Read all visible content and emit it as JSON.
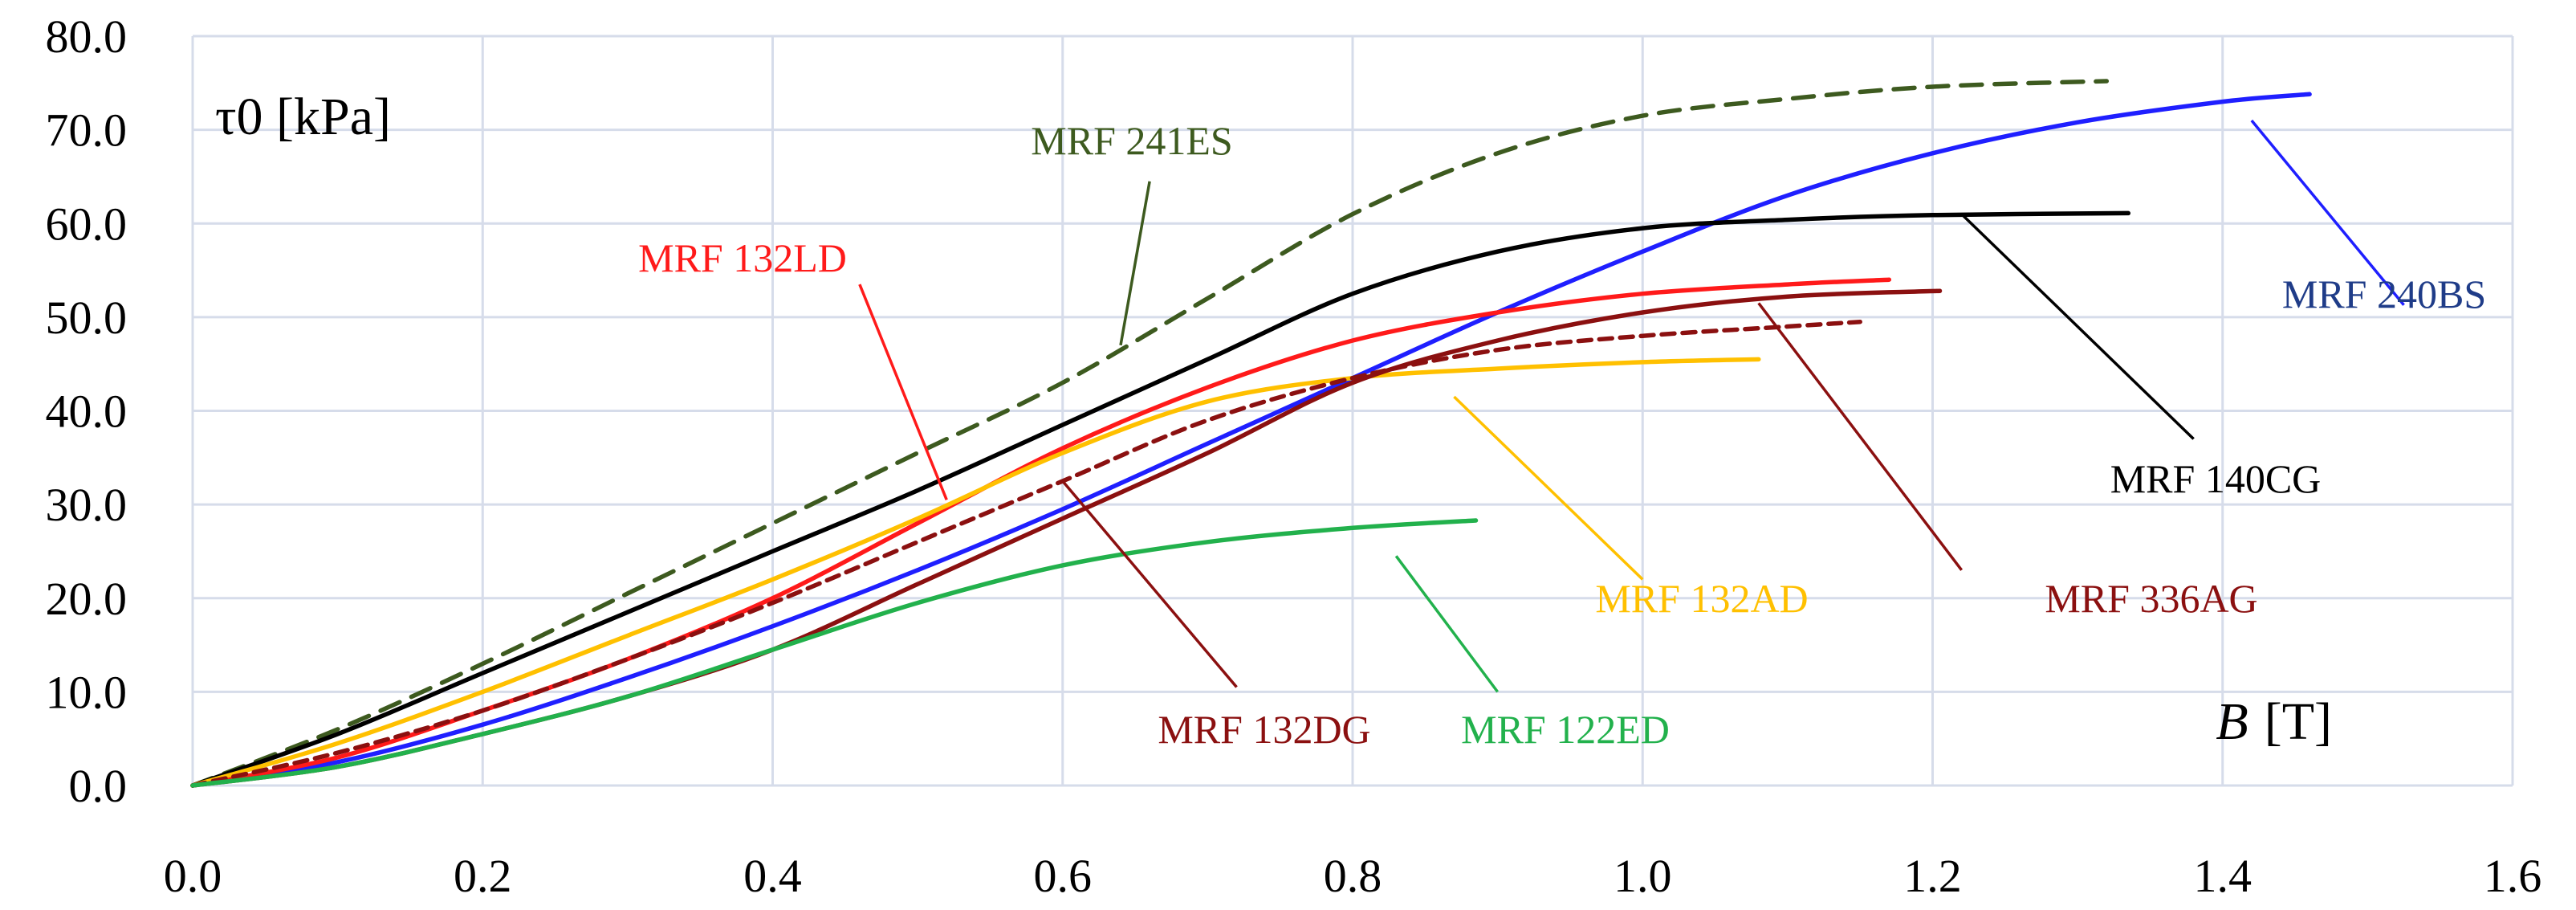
{
  "chart_data": {
    "type": "line",
    "ylabel": "τ0 [kPa]",
    "xlabel_var": "B",
    "xlabel_unit": "[T]",
    "xlim": [
      0,
      1.6
    ],
    "ylim": [
      0,
      80
    ],
    "grid": true,
    "x_ticks": [
      0.0,
      0.2,
      0.4,
      0.6,
      0.8,
      1.0,
      1.2,
      1.4,
      1.6
    ],
    "y_ticks": [
      0.0,
      10.0,
      20.0,
      30.0,
      40.0,
      50.0,
      60.0,
      70.0,
      80.0
    ],
    "x_tick_labels": [
      "0.0",
      "0.2",
      "0.4",
      "0.6",
      "0.8",
      "1.0",
      "1.2",
      "1.4",
      "1.6"
    ],
    "y_tick_labels": [
      "0.0",
      "10.0",
      "20.0",
      "30.0",
      "40.0",
      "50.0",
      "60.0",
      "70.0",
      "80.0"
    ],
    "series": [
      {
        "name": "MRF 241ES",
        "color": "#3d5a1f",
        "dashed": true,
        "dash": "long",
        "x": [
          0,
          0.1,
          0.2,
          0.3,
          0.4,
          0.5,
          0.6,
          0.7,
          0.8,
          0.9,
          1.0,
          1.1,
          1.2,
          1.32
        ],
        "y": [
          0,
          6,
          13,
          20.5,
          28,
          35.5,
          43,
          52,
          61,
          67.5,
          71.5,
          73.3,
          74.6,
          75.2
        ],
        "label_at": [
          0.64,
          47
        ],
        "pointer_to": [
          0.66,
          64.5
        ]
      },
      {
        "name": "MRF 240BS",
        "color": "#1f1fff",
        "text_color": "#1f3c88",
        "dashed": false,
        "x": [
          0,
          0.1,
          0.2,
          0.3,
          0.4,
          0.5,
          0.6,
          0.7,
          0.8,
          0.9,
          1.0,
          1.1,
          1.2,
          1.3,
          1.4,
          1.46
        ],
        "y": [
          0,
          2.5,
          6.5,
          11.5,
          17,
          23,
          29.5,
          36.5,
          43.5,
          50.5,
          57,
          63,
          67.5,
          70.8,
          73,
          73.8
        ],
        "label_at": [
          1.42,
          71
        ],
        "pointer_to": [
          1.525,
          51.3
        ]
      },
      {
        "name": "MRF 140CG",
        "color": "#000000",
        "dashed": false,
        "x": [
          0,
          0.1,
          0.2,
          0.3,
          0.4,
          0.5,
          0.6,
          0.7,
          0.8,
          0.9,
          1.0,
          1.1,
          1.2,
          1.335
        ],
        "y": [
          0,
          5.5,
          12,
          18.5,
          25,
          31.5,
          38.5,
          45.5,
          52.5,
          57,
          59.5,
          60.4,
          60.9,
          61.1
        ],
        "label_at": [
          1.22,
          61
        ],
        "pointer_to": [
          1.38,
          37
        ]
      },
      {
        "name": "MRF 132LD",
        "color": "#ff1a1a",
        "dashed": false,
        "x": [
          0,
          0.1,
          0.2,
          0.3,
          0.4,
          0.5,
          0.6,
          0.7,
          0.8,
          0.9,
          1.0,
          1.1,
          1.17
        ],
        "y": [
          0,
          3,
          8,
          13.5,
          20,
          28,
          36,
          42.5,
          47.5,
          50.5,
          52.5,
          53.5,
          54
        ],
        "label_at": [
          0.52,
          30.5
        ],
        "pointer_to": [
          0.46,
          53.5
        ]
      },
      {
        "name": "MRF 132AD",
        "color": "#ffc000",
        "dashed": false,
        "x": [
          0,
          0.1,
          0.2,
          0.3,
          0.4,
          0.5,
          0.6,
          0.7,
          0.8,
          0.9,
          1.0,
          1.08
        ],
        "y": [
          0,
          4.5,
          10,
          16,
          22,
          28.5,
          35.5,
          41,
          43.5,
          44.5,
          45.2,
          45.5
        ],
        "label_at": [
          0.87,
          41.5
        ],
        "pointer_to": [
          1.0,
          22
        ]
      },
      {
        "name": "MRF 336AG",
        "color": "#8b1010",
        "dashed": false,
        "x": [
          0,
          0.1,
          0.2,
          0.3,
          0.4,
          0.5,
          0.6,
          0.7,
          0.8,
          0.9,
          1.0,
          1.1,
          1.205
        ],
        "y": [
          0,
          2,
          5.5,
          9.5,
          14.5,
          21.5,
          28.5,
          35.5,
          43,
          47.5,
          50.5,
          52.2,
          52.8
        ],
        "label_at": [
          1.08,
          51.5
        ],
        "pointer_to": [
          1.22,
          23
        ]
      },
      {
        "name": "MRF 132DG",
        "color": "#8b1010",
        "dashed": true,
        "dash": "short",
        "x": [
          0,
          0.1,
          0.2,
          0.3,
          0.4,
          0.5,
          0.6,
          0.7,
          0.8,
          0.9,
          1.0,
          1.1,
          1.15
        ],
        "y": [
          0,
          3.5,
          8,
          13.5,
          19.5,
          26,
          32.5,
          39,
          43.5,
          46.5,
          48,
          49,
          49.5
        ],
        "label_at": [
          0.6,
          32.5
        ],
        "pointer_to": [
          0.72,
          10.5
        ]
      },
      {
        "name": "MRF 122ED",
        "color": "#22b14c",
        "dashed": false,
        "x": [
          0,
          0.1,
          0.2,
          0.3,
          0.4,
          0.5,
          0.6,
          0.7,
          0.8,
          0.885
        ],
        "y": [
          0,
          2,
          5.5,
          9.5,
          14.5,
          19.5,
          23.5,
          26,
          27.5,
          28.3
        ],
        "label_at": [
          0.83,
          24.5
        ],
        "pointer_to": [
          0.9,
          10
        ]
      }
    ]
  }
}
